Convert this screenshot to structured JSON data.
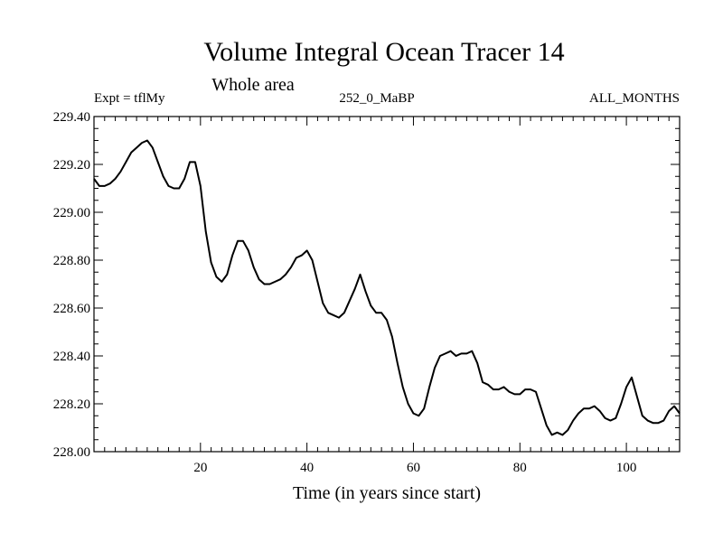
{
  "chart_data": {
    "type": "line",
    "title": "Volume Integral Ocean Tracer 14",
    "subtitle": "Whole area",
    "header_left": "Expt = tflMy",
    "header_center": "252_0_MaBP",
    "header_right": "ALL_MONTHS",
    "xlabel": "Time (in years since start)",
    "ylabel": "",
    "xlim": [
      0,
      110
    ],
    "ylim": [
      228.0,
      229.4
    ],
    "x_ticks": [
      20,
      40,
      60,
      80,
      100
    ],
    "y_ticks": [
      "228.00",
      "228.20",
      "228.40",
      "228.60",
      "228.80",
      "229.00",
      "229.20",
      "229.40"
    ],
    "grid": false,
    "series": [
      {
        "name": "Volume Integral Ocean Tracer 14",
        "color": "#000000",
        "x": [
          0,
          1,
          2,
          3,
          4,
          5,
          6,
          7,
          8,
          9,
          10,
          11,
          12,
          13,
          14,
          15,
          16,
          17,
          18,
          19,
          20,
          21,
          22,
          23,
          24,
          25,
          26,
          27,
          28,
          29,
          30,
          31,
          32,
          33,
          34,
          35,
          36,
          37,
          38,
          39,
          40,
          41,
          42,
          43,
          44,
          45,
          46,
          47,
          48,
          49,
          50,
          51,
          52,
          53,
          54,
          55,
          56,
          57,
          58,
          59,
          60,
          61,
          62,
          63,
          64,
          65,
          66,
          67,
          68,
          69,
          70,
          71,
          72,
          73,
          74,
          75,
          76,
          77,
          78,
          79,
          80,
          81,
          82,
          83,
          84,
          85,
          86,
          87,
          88,
          89,
          90,
          91,
          92,
          93,
          94,
          95,
          96,
          97,
          98,
          99,
          100,
          101,
          102,
          103,
          104,
          105,
          106,
          107,
          108,
          109,
          110
        ],
        "y": [
          229.14,
          229.11,
          229.11,
          229.12,
          229.14,
          229.17,
          229.21,
          229.25,
          229.27,
          229.29,
          229.3,
          229.27,
          229.21,
          229.15,
          229.11,
          229.1,
          229.1,
          229.14,
          229.21,
          229.21,
          229.11,
          228.92,
          228.79,
          228.73,
          228.71,
          228.74,
          228.82,
          228.88,
          228.88,
          228.84,
          228.77,
          228.72,
          228.7,
          228.7,
          228.71,
          228.72,
          228.74,
          228.77,
          228.81,
          228.82,
          228.84,
          228.8,
          228.71,
          228.62,
          228.58,
          228.57,
          228.56,
          228.58,
          228.63,
          228.68,
          228.74,
          228.67,
          228.61,
          228.58,
          228.58,
          228.55,
          228.48,
          228.37,
          228.27,
          228.2,
          228.16,
          228.15,
          228.18,
          228.27,
          228.35,
          228.4,
          228.41,
          228.42,
          228.4,
          228.41,
          228.41,
          228.42,
          228.37,
          228.29,
          228.28,
          228.26,
          228.26,
          228.27,
          228.25,
          228.24,
          228.24,
          228.26,
          228.26,
          228.25,
          228.18,
          228.11,
          228.07,
          228.08,
          228.07,
          228.09,
          228.13,
          228.16,
          228.18,
          228.18,
          228.19,
          228.17,
          228.14,
          228.13,
          228.14,
          228.2,
          228.27,
          228.31,
          228.23,
          228.15,
          228.13,
          228.12,
          228.12,
          228.13,
          228.17,
          228.19,
          228.16
        ]
      }
    ]
  }
}
